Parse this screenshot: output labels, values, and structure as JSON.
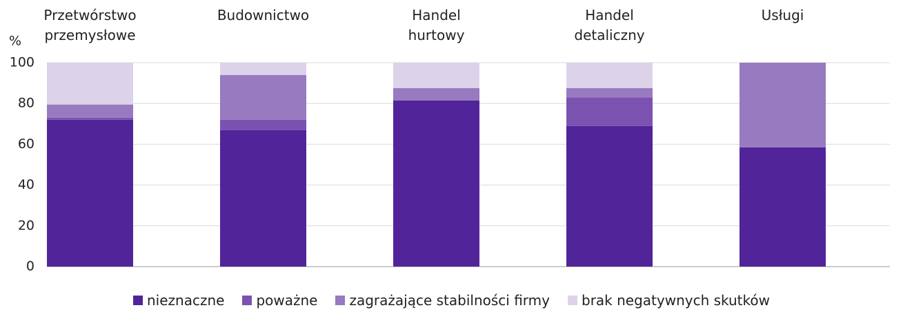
{
  "chart_data": {
    "type": "stacked_bar",
    "y_label": "%",
    "categories": [
      "Przetwórstwo\nprzemysłowe",
      "Budownictwo",
      "Handel\nhurtowy",
      "Handel\ndetaliczny",
      "Usługi"
    ],
    "series": [
      {
        "name": "nieznaczne",
        "color": "#52249a",
        "values": [
          72,
          67,
          81.5,
          69,
          58.5
        ]
      },
      {
        "name": "poważne",
        "color": "#7b52b0",
        "values": [
          1,
          5,
          0,
          14,
          0
        ]
      },
      {
        "name": "zagrażające stabilności firmy",
        "color": "#977ac0",
        "values": [
          6.5,
          22,
          6,
          4.5,
          41.5
        ]
      },
      {
        "name": "brak negatywnych skutków",
        "color": "#dcd3ea",
        "values": [
          20.5,
          6,
          12.5,
          12.5,
          0
        ]
      }
    ],
    "ylim": [
      0,
      100
    ],
    "yticks": [
      0,
      20,
      40,
      60,
      80,
      100
    ],
    "grid": true,
    "legend": "bottom"
  }
}
